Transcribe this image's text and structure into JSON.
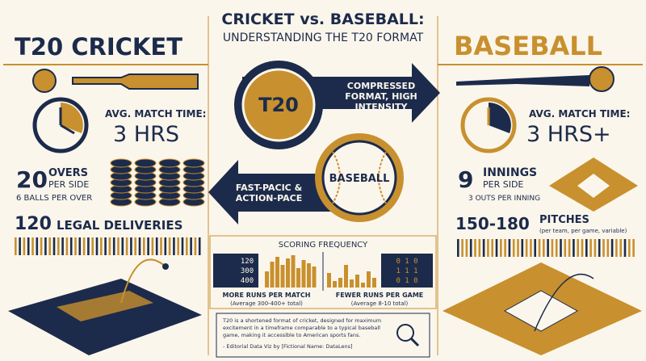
{
  "header": {
    "title": "CRICKET vs. BASEBALL:",
    "subtitle": "UNDERSTANDING THE T20 FORMAT"
  },
  "cricket": {
    "heading": "T20 CRICKET",
    "time_label": "AVG. MATCH TIME:",
    "time_value": "3 HRS",
    "overs_number": "20",
    "overs_label_1": "OVERS",
    "overs_label_2": "PER SIDE",
    "overs_note": "6 BALLS PER OVER",
    "deliveries_number": "120",
    "deliveries_label": "LEGAL DELIVERIES"
  },
  "baseball": {
    "heading": "BASEBALL",
    "time_label": "AVG. MATCH TIME:",
    "time_value": "3 HRS+",
    "innings_number": "9",
    "innings_label_1": "INNINGS",
    "innings_label_2": "PER SIDE",
    "innings_note": "3 OUTS PER INNING",
    "pitches_number": "150-180",
    "pitches_label": "PITCHES",
    "pitches_note": "(per team, per game, variable)"
  },
  "center": {
    "t20_badge": "T20",
    "arrow_right_lines": [
      "COMPRESSED",
      "FORMAT, HIGH",
      "INTENSITY"
    ],
    "baseball_badge": "BASEBALL",
    "arrow_left_lines": [
      "FAST-PACIC &",
      "ACTION-PACE"
    ]
  },
  "scoring": {
    "title": "SCORING FREQUENCY",
    "cricket_board": [
      "120",
      "300",
      "400"
    ],
    "baseball_board": [
      "0 1 0",
      "1 1 1",
      "0 1 0"
    ],
    "cricket_label": "MORE RUNS PER MATCH",
    "cricket_note": "(Average 300-400+ total)",
    "baseball_label": "FEWER RUNS PER GAME",
    "baseball_note": "(Average 8-10 total)"
  },
  "footnote": {
    "lines": [
      "T20 is a shortened format of cricket, designed for maximum",
      "excitement in a timeframe comparable to a typical baseball",
      "game, making it accessible to American sports fans."
    ],
    "credit": "- Editorial Data Viz by [Fictional Name: DataLens]"
  }
}
